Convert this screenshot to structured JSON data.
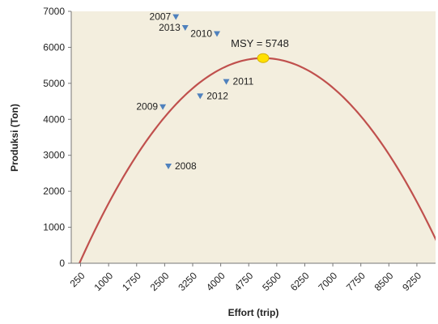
{
  "chart_data": {
    "type": "scatter",
    "xlabel": "Effort (trip)",
    "ylabel": "Produksi (Ton)",
    "x_ticks": [
      250,
      1000,
      1750,
      2500,
      3250,
      4000,
      4750,
      5500,
      6250,
      7000,
      7750,
      8500,
      9250
    ],
    "y_ticks": [
      0,
      1000,
      2000,
      3000,
      4000,
      5000,
      6000,
      7000
    ],
    "xlim": [
      0,
      9750
    ],
    "ylim": [
      0,
      7000
    ],
    "grid": false,
    "background_color": "#f3eede",
    "curve_color": "#c0504d",
    "marker_color": "#4f81bd",
    "msy_color": "#ffe000",
    "points": [
      {
        "label": "2007",
        "x": 2800,
        "y": 6850
      },
      {
        "label": "2013",
        "x": 3050,
        "y": 6550
      },
      {
        "label": "2010",
        "x": 3900,
        "y": 6380
      },
      {
        "label": "2011",
        "x": 4150,
        "y": 5050
      },
      {
        "label": "2012",
        "x": 3450,
        "y": 4650
      },
      {
        "label": "2009",
        "x": 2450,
        "y": 4350
      },
      {
        "label": "2008",
        "x": 2600,
        "y": 2700
      }
    ],
    "curve": {
      "x_start": 220,
      "x_end": 10050,
      "peak_x": 5135,
      "peak_y": 5700
    },
    "msy": {
      "label": "MSY = 5748",
      "x": 5135,
      "y": 5700
    }
  }
}
